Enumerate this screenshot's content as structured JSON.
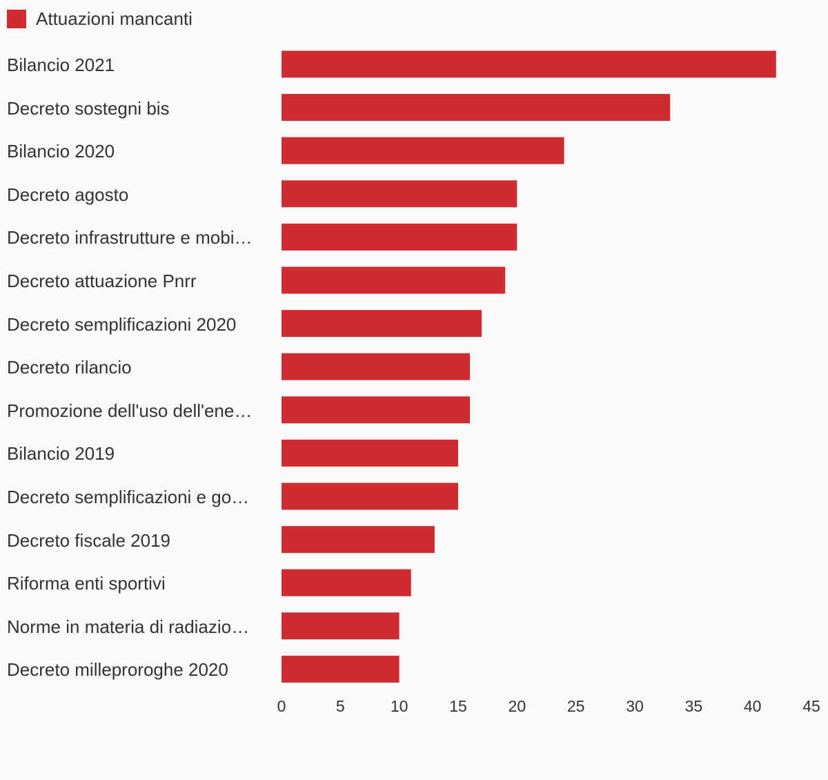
{
  "chart_data": {
    "type": "bar",
    "orientation": "horizontal",
    "legend": {
      "label": "Attuazioni mancanti",
      "color": "#cf2c32",
      "position": "top-left"
    },
    "series": [
      {
        "name": "Attuazioni mancanti",
        "values": [
          42,
          33,
          24,
          20,
          20,
          19,
          17,
          16,
          16,
          15,
          15,
          13,
          11,
          10,
          10
        ]
      }
    ],
    "categories": [
      "Bilancio 2021",
      "Decreto sostegni bis",
      "Bilancio 2020",
      "Decreto agosto",
      "Decreto infrastrutture e mobi…",
      "Decreto attuazione Pnrr",
      "Decreto semplificazioni 2020",
      "Decreto rilancio",
      "Promozione dell'uso dell'ene…",
      "Bilancio 2019",
      "Decreto semplificazioni e go…",
      "Decreto fiscale 2019",
      "Riforma enti sportivi",
      "Norme in materia di radiazio…",
      "Decreto milleproroghe 2020"
    ],
    "xlim": [
      0,
      45
    ],
    "xticks": [
      "0",
      "5",
      "10",
      "15",
      "20",
      "25",
      "30",
      "35",
      "40",
      "45"
    ],
    "grid": false,
    "bar_color": "#cf2c32"
  }
}
